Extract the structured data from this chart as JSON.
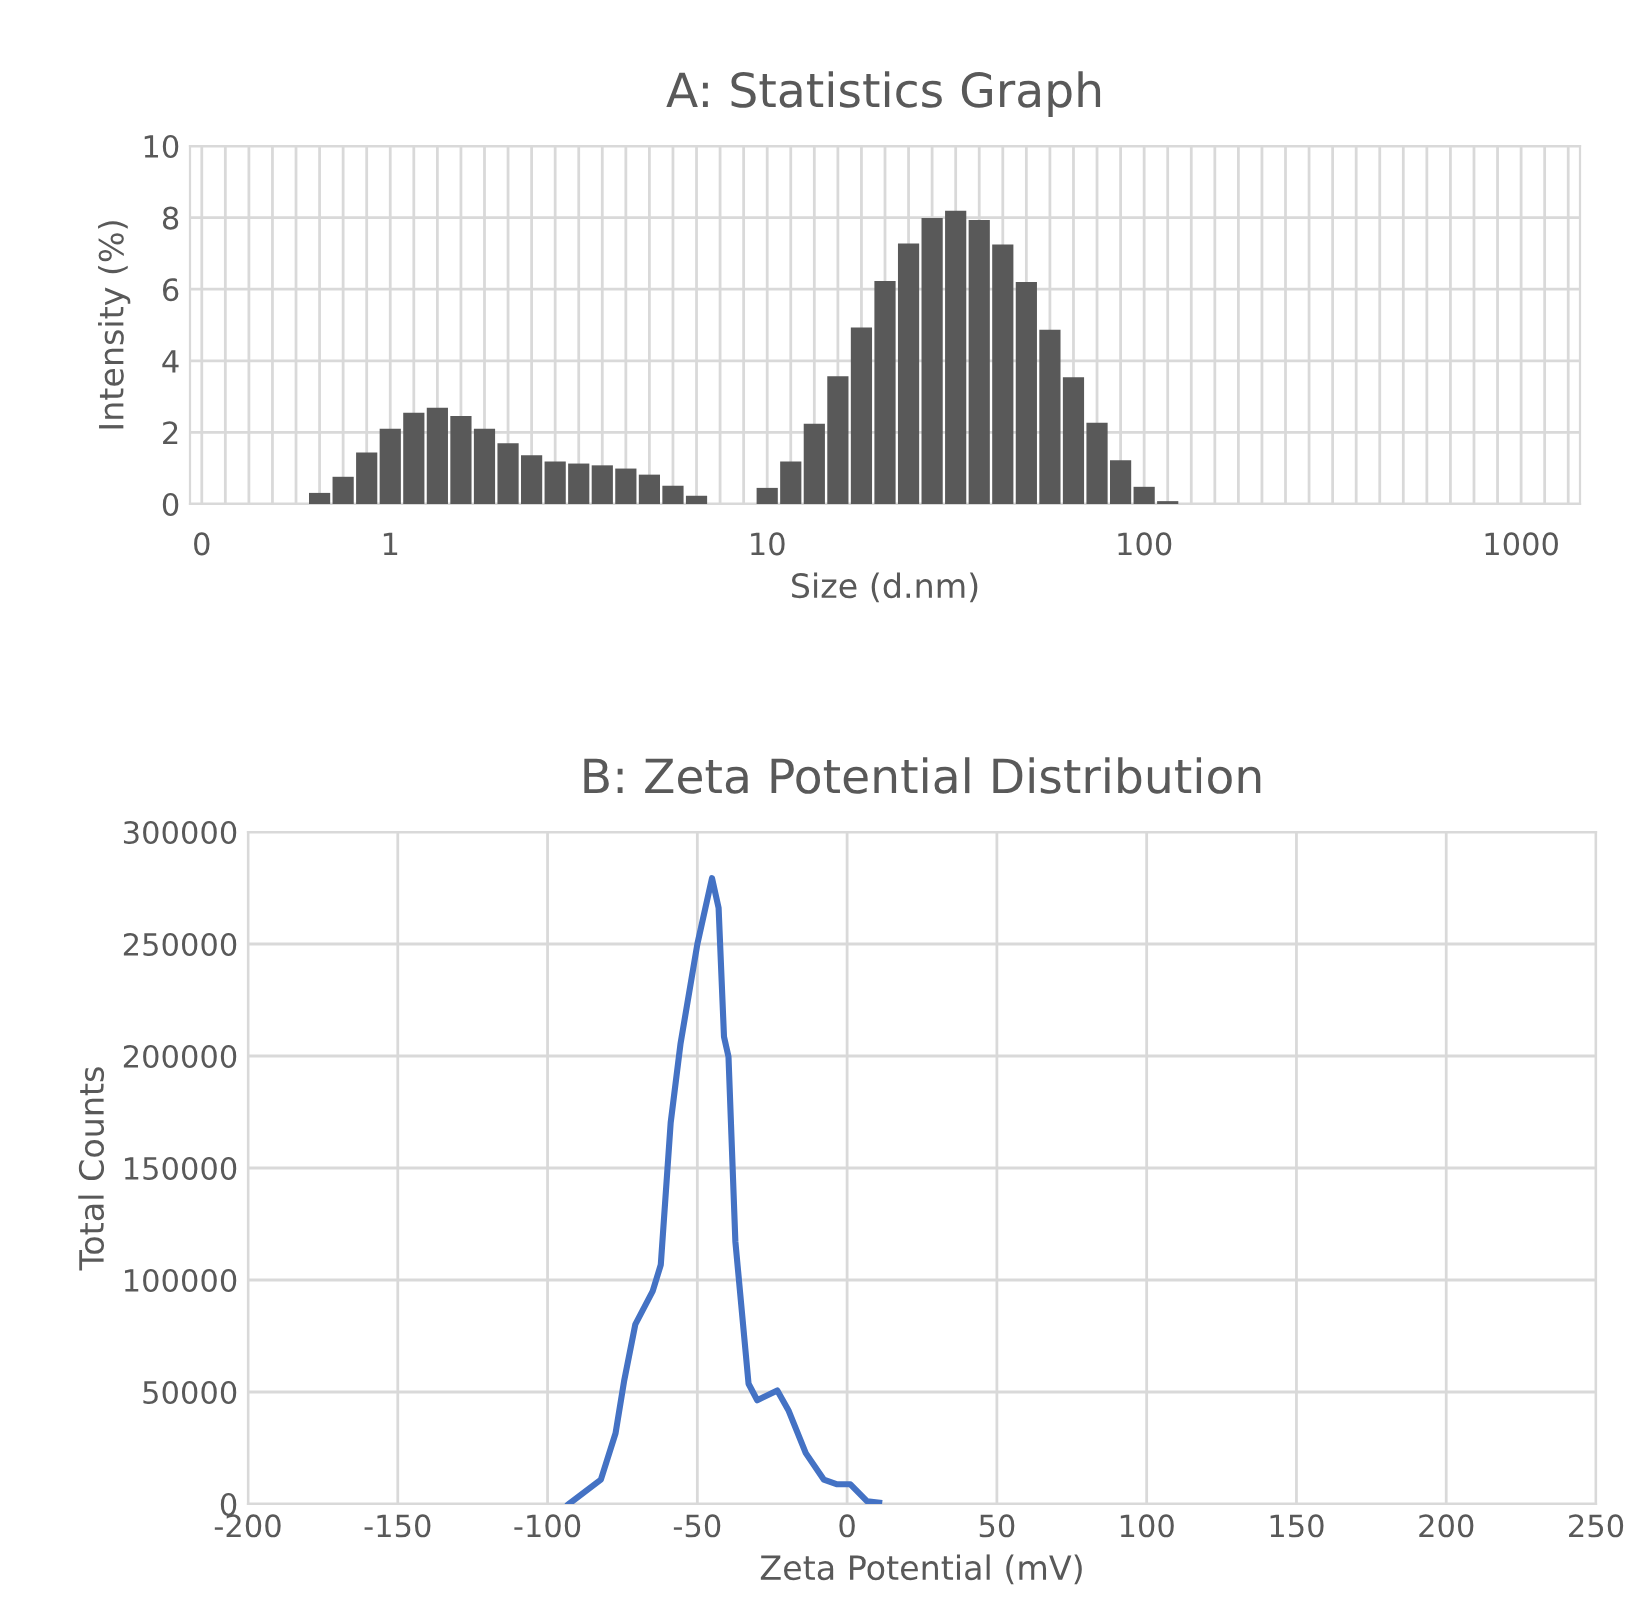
{
  "chart_data": [
    {
      "type": "bar",
      "title": "A: Statistics Graph",
      "xlabel": "Size (d.nm)",
      "ylabel": "Intensity (%)",
      "categories": [
        "0",
        null,
        null,
        null,
        null,
        null,
        null,
        null,
        "1",
        null,
        null,
        null,
        null,
        null,
        null,
        null,
        null,
        null,
        null,
        null,
        null,
        null,
        null,
        null,
        "10",
        null,
        null,
        null,
        null,
        null,
        null,
        null,
        null,
        null,
        null,
        null,
        null,
        null,
        null,
        null,
        "100",
        null,
        null,
        null,
        null,
        null,
        null,
        null,
        null,
        null,
        null,
        null,
        null,
        null,
        null,
        null,
        "1000",
        null,
        null
      ],
      "values": [
        0,
        0,
        0,
        0,
        0,
        0.31,
        0.76,
        1.44,
        2.1,
        2.55,
        2.69,
        2.46,
        2.1,
        1.7,
        1.36,
        1.19,
        1.13,
        1.08,
        0.99,
        0.82,
        0.51,
        0.23,
        0,
        0,
        0.45,
        1.19,
        2.24,
        3.57,
        4.93,
        6.23,
        7.28,
        7.99,
        8.19,
        7.93,
        7.25,
        6.2,
        4.87,
        3.54,
        2.27,
        1.22,
        0.48,
        0.08,
        0,
        0,
        0,
        0,
        0,
        0,
        0,
        0,
        0,
        0,
        0,
        0,
        0,
        0,
        0,
        0,
        0
      ],
      "color": "#595959",
      "ylim": [
        0,
        10
      ],
      "yticks": [
        0,
        2,
        4,
        6,
        8,
        10
      ],
      "grid": true
    },
    {
      "type": "line",
      "title": "B: Zeta Potential Distribution",
      "xlabel": "Zeta Potential (mV)",
      "ylabel": "Total Counts",
      "x": [
        -92.9,
        -82.2,
        -77.3,
        -74.4,
        -70.7,
        -64.9,
        -62.2,
        -58.9,
        -55.6,
        -50,
        -45.1,
        -42.9,
        -41.1,
        -39.6,
        -37.3,
        -32.9,
        -30,
        -23.3,
        -19.6,
        -13.8,
        -7.8,
        -3.3,
        1.1,
        6.7,
        10.7
      ],
      "values": [
        0,
        10900,
        31600,
        55200,
        80200,
        95000,
        106800,
        170200,
        205600,
        249900,
        279400,
        266100,
        208600,
        199700,
        117100,
        53700,
        46300,
        50700,
        41900,
        22700,
        10900,
        8800,
        8800,
        1200,
        600
      ],
      "color": "#4472c4",
      "xlim": [
        -200,
        250
      ],
      "xticks": [
        -200,
        -150,
        -100,
        -50,
        0,
        50,
        100,
        150,
        200,
        250
      ],
      "ylim": [
        0,
        300000
      ],
      "yticks": [
        0,
        50000,
        100000,
        150000,
        200000,
        250000,
        300000
      ],
      "grid": true
    }
  ]
}
